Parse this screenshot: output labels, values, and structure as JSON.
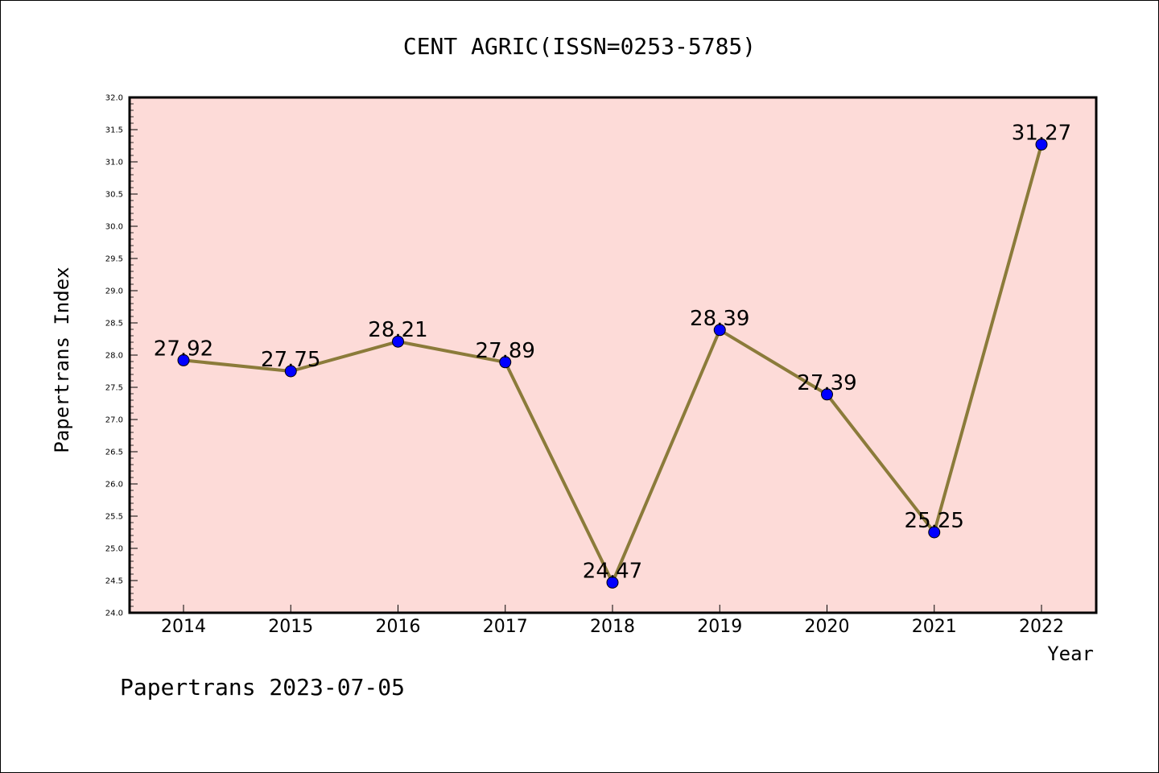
{
  "chart_data": {
    "type": "line",
    "title": "CENT AGRIC(ISSN=0253-5785)",
    "xlabel": "Year",
    "ylabel": "Papertrans Index",
    "categories": [
      "2014",
      "2015",
      "2016",
      "2017",
      "2018",
      "2019",
      "2020",
      "2021",
      "2022"
    ],
    "series": [
      {
        "values": [
          27.92,
          27.75,
          28.21,
          27.89,
          24.47,
          28.39,
          27.39,
          25.25,
          31.27
        ]
      }
    ],
    "data_labels": [
      "27.92",
      "27.75",
      "28.21",
      "27.89",
      "24.47",
      "28.39",
      "27.39",
      "25.25",
      "31.27"
    ],
    "ylim": [
      24.0,
      32.0
    ],
    "yticks": [
      "24.0",
      "24.5",
      "25.0",
      "25.5",
      "26.0",
      "26.5",
      "27.0",
      "27.5",
      "28.0",
      "28.5",
      "29.0",
      "29.5",
      "30.0",
      "30.5",
      "31.0",
      "31.5",
      "32.0"
    ],
    "grid": false,
    "colors": {
      "plot_background": "#fddbd8",
      "line": "#8b7b3a",
      "marker": "#0000ff",
      "axis": "#000000"
    }
  },
  "footer": "Papertrans 2023-07-05"
}
